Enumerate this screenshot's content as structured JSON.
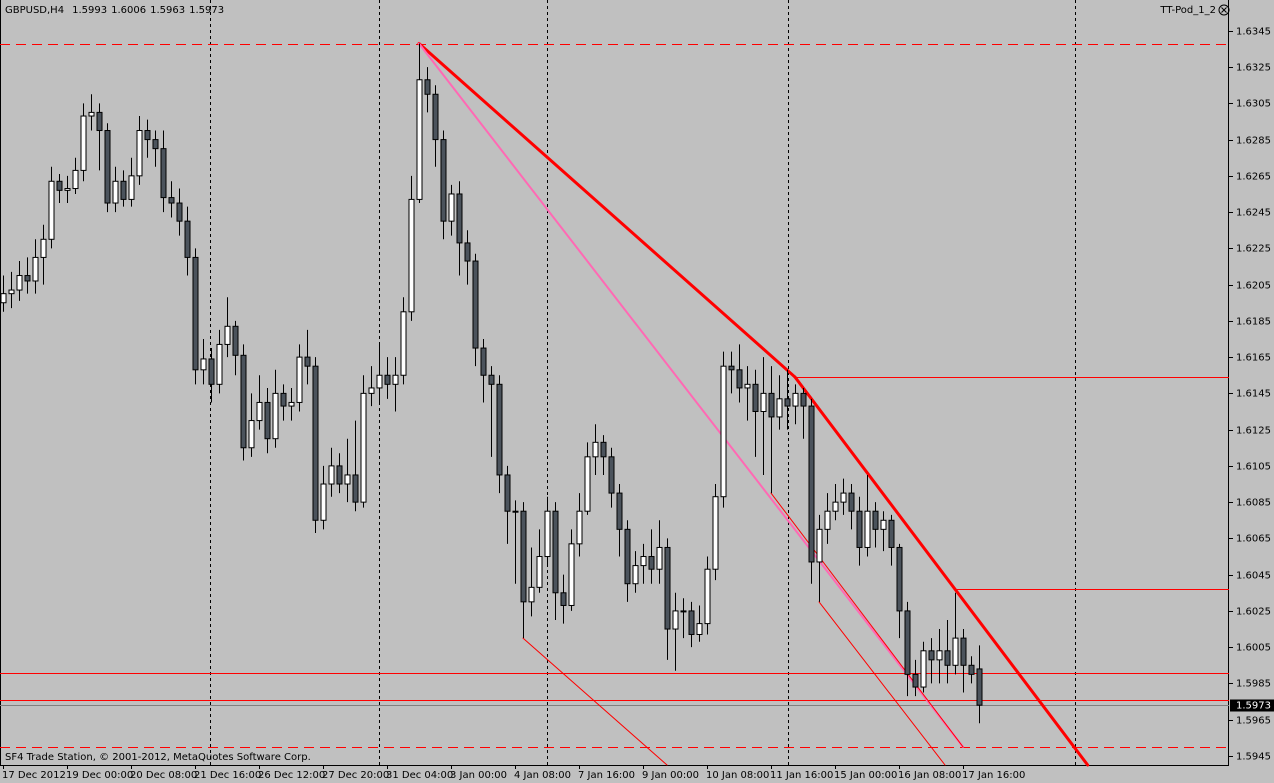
{
  "chart_data": {
    "type": "candlestick",
    "symbol": "GBPUSD,H4",
    "indicator": "TT-Pod_1_2",
    "footer": "SF4 Trade Station, © 2001-2012, MetaQuotes Software Corp.",
    "up_color": "#ffffff",
    "down_color": "#4b535c",
    "line_color": "#ff0000",
    "categories": [
      "17 Dec 2012",
      null,
      null,
      null,
      null,
      null,
      null,
      null,
      "19 Dec 00:00",
      null,
      null,
      null,
      null,
      null,
      null,
      null,
      "20 Dec 08:00",
      null,
      null,
      null,
      null,
      null,
      null,
      null,
      "21 Dec 16:00",
      null,
      null,
      null,
      null,
      null,
      null,
      null,
      "26 Dec 12:00",
      null,
      null,
      null,
      null,
      null,
      null,
      null,
      "27 Dec 20:00",
      null,
      null,
      null,
      null,
      null,
      null,
      null,
      "31 Dec 04:00",
      null,
      null,
      null,
      null,
      null,
      null,
      null,
      "3 Jan 00:00",
      null,
      null,
      null,
      null,
      null,
      null,
      null,
      "4 Jan 08:00",
      null,
      null,
      null,
      null,
      null,
      null,
      null,
      "7 Jan 16:00",
      null,
      null,
      null,
      null,
      null,
      null,
      null,
      "9 Jan 00:00",
      null,
      null,
      null,
      null,
      null,
      null,
      null,
      "10 Jan 08:00",
      null,
      null,
      null,
      null,
      null,
      null,
      null,
      "11 Jan 16:00",
      null,
      null,
      null,
      null,
      null,
      null,
      null,
      "15 Jan 00:00",
      null,
      null,
      null,
      null,
      null,
      null,
      null,
      "16 Jan 08:00",
      null,
      null,
      null,
      null,
      null,
      null,
      null,
      "17 Jan 16:00",
      null,
      null
    ],
    "open": [
      1.6195,
      1.62,
      1.6202,
      1.621,
      1.6207,
      1.622,
      1.623,
      1.6262,
      1.6257,
      1.6258,
      1.6268,
      1.6298,
      1.63,
      1.629,
      1.625,
      1.6262,
      1.6252,
      1.6265,
      1.629,
      1.6285,
      1.628,
      1.6253,
      1.625,
      1.624,
      1.622,
      1.6158,
      1.6164,
      1.615,
      1.6172,
      1.6182,
      1.6166,
      1.6115,
      1.613,
      1.614,
      1.612,
      1.6145,
      1.6138,
      1.614,
      1.6165,
      1.616,
      1.6075,
      1.6095,
      1.6105,
      1.6095,
      1.61,
      1.6085,
      1.6145,
      1.6148,
      1.6155,
      1.615,
      1.6155,
      1.619,
      1.6252,
      1.6318,
      1.631,
      1.6285,
      1.624,
      1.6255,
      1.6228,
      1.6218,
      1.617,
      1.6155,
      1.615,
      1.61,
      1.608,
      1.608,
      1.603,
      1.6038,
      1.6055,
      1.608,
      1.6035,
      1.6028,
      1.6062,
      1.608,
      1.611,
      1.6118,
      1.611,
      1.609,
      1.607,
      1.604,
      1.605,
      1.6055,
      1.6048,
      1.606,
      1.6015,
      1.6025,
      1.6025,
      1.6012,
      1.6018,
      1.6048,
      1.6088,
      1.616,
      1.6158,
      1.6148,
      1.615,
      1.6135,
      1.6145,
      1.6132,
      1.6142,
      1.6138,
      1.6145,
      1.6138,
      1.6052,
      1.607,
      1.608,
      1.6085,
      1.609,
      1.608,
      1.606,
      1.608,
      1.607,
      1.6075,
      1.606,
      1.6025,
      1.599,
      1.5983,
      1.6003,
      1.5998,
      1.6003,
      1.5995,
      1.601,
      1.5995,
      1.5993
    ],
    "high": [
      1.621,
      1.6212,
      1.6218,
      1.622,
      1.623,
      1.6238,
      1.627,
      1.6266,
      1.6265,
      1.6275,
      1.6305,
      1.631,
      1.6305,
      1.6294,
      1.627,
      1.6268,
      1.6275,
      1.6298,
      1.6296,
      1.629,
      1.629,
      1.6262,
      1.6258,
      1.6248,
      1.6225,
      1.6175,
      1.617,
      1.618,
      1.6198,
      1.6185,
      1.6172,
      1.6145,
      1.6155,
      1.6148,
      1.6158,
      1.615,
      1.6148,
      1.6172,
      1.618,
      1.6165,
      1.6105,
      1.6115,
      1.6112,
      1.612,
      1.613,
      1.6155,
      1.616,
      1.6172,
      1.6165,
      1.6165,
      1.6198,
      1.6265,
      1.6338,
      1.6325,
      1.6315,
      1.629,
      1.626,
      1.6262,
      1.6235,
      1.6222,
      1.6175,
      1.616,
      1.6155,
      1.6105,
      1.6086,
      1.6085,
      1.606,
      1.607,
      1.6088,
      1.6085,
      1.6045,
      1.607,
      1.609,
      1.6118,
      1.6128,
      1.6122,
      1.6115,
      1.6095,
      1.6075,
      1.6058,
      1.6062,
      1.607,
      1.6075,
      1.6065,
      1.6035,
      1.6032,
      1.603,
      1.6028,
      1.6055,
      1.6095,
      1.6168,
      1.6168,
      1.6172,
      1.616,
      1.6158,
      1.6165,
      1.616,
      1.6155,
      1.6158,
      1.615,
      1.6148,
      1.6142,
      1.6078,
      1.609,
      1.6095,
      1.6098,
      1.6095,
      1.6088,
      1.61,
      1.6085,
      1.608,
      1.6078,
      1.6062,
      1.603,
      1.5998,
      1.6008,
      1.601,
      1.6015,
      1.602,
      1.6035,
      1.6015,
      1.6,
      1.6006
    ],
    "low": [
      1.619,
      1.6192,
      1.6196,
      1.62,
      1.62,
      1.6205,
      1.6225,
      1.625,
      1.625,
      1.6255,
      1.6262,
      1.629,
      1.6268,
      1.6245,
      1.6245,
      1.6248,
      1.6248,
      1.626,
      1.6275,
      1.627,
      1.6245,
      1.6242,
      1.6232,
      1.621,
      1.615,
      1.615,
      1.614,
      1.6145,
      1.6165,
      1.6155,
      1.6108,
      1.611,
      1.6125,
      1.6112,
      1.6115,
      1.613,
      1.613,
      1.6135,
      1.615,
      1.6068,
      1.607,
      1.6088,
      1.609,
      1.6085,
      1.608,
      1.6082,
      1.6138,
      1.614,
      1.6142,
      1.6135,
      1.615,
      1.6185,
      1.625,
      1.63,
      1.627,
      1.623,
      1.6232,
      1.621,
      1.6205,
      1.616,
      1.614,
      1.611,
      1.609,
      1.6062,
      1.604,
      1.601,
      1.6022,
      1.6035,
      1.605,
      1.602,
      1.6018,
      1.6025,
      1.6055,
      1.6078,
      1.61,
      1.61,
      1.6082,
      1.6055,
      1.603,
      1.6035,
      1.604,
      1.604,
      1.604,
      1.5998,
      1.5992,
      1.601,
      1.6005,
      1.6008,
      1.6012,
      1.6042,
      1.6082,
      1.6145,
      1.614,
      1.613,
      1.611,
      1.61,
      1.609,
      1.6125,
      1.6125,
      1.6128,
      1.612,
      1.604,
      1.603,
      1.6062,
      1.6075,
      1.6078,
      1.607,
      1.605,
      1.6055,
      1.606,
      1.6058,
      1.605,
      1.601,
      1.5978,
      1.5978,
      1.598,
      1.5985,
      1.5985,
      1.5985,
      1.599,
      1.598,
      1.5985,
      1.5963
    ],
    "close": [
      1.62,
      1.6202,
      1.621,
      1.6207,
      1.622,
      1.623,
      1.6262,
      1.6257,
      1.6258,
      1.6268,
      1.6298,
      1.63,
      1.629,
      1.625,
      1.6262,
      1.6252,
      1.6265,
      1.629,
      1.6285,
      1.628,
      1.6253,
      1.625,
      1.624,
      1.622,
      1.6158,
      1.6164,
      1.615,
      1.6172,
      1.6182,
      1.6166,
      1.6115,
      1.613,
      1.614,
      1.612,
      1.6145,
      1.6138,
      1.614,
      1.6165,
      1.616,
      1.6075,
      1.6095,
      1.6105,
      1.6095,
      1.61,
      1.6085,
      1.6145,
      1.6148,
      1.6155,
      1.615,
      1.6155,
      1.619,
      1.6252,
      1.6318,
      1.631,
      1.6285,
      1.624,
      1.6255,
      1.6228,
      1.6218,
      1.617,
      1.6155,
      1.615,
      1.61,
      1.608,
      1.608,
      1.603,
      1.6038,
      1.6055,
      1.608,
      1.6035,
      1.6028,
      1.6062,
      1.608,
      1.611,
      1.6118,
      1.611,
      1.609,
      1.607,
      1.604,
      1.605,
      1.6055,
      1.6048,
      1.606,
      1.6015,
      1.6025,
      1.6025,
      1.6012,
      1.6018,
      1.6048,
      1.6088,
      1.616,
      1.6158,
      1.6148,
      1.615,
      1.6135,
      1.6145,
      1.6132,
      1.6142,
      1.6138,
      1.6145,
      1.6138,
      1.6052,
      1.607,
      1.608,
      1.6085,
      1.609,
      1.608,
      1.606,
      1.608,
      1.607,
      1.6075,
      1.606,
      1.6025,
      1.599,
      1.5983,
      1.6003,
      1.5998,
      1.6003,
      1.5995,
      1.601,
      1.5995,
      1.599,
      1.5973
    ],
    "ylim": [
      1.594,
      1.6362
    ],
    "yticks": [
      1.6345,
      1.6325,
      1.6305,
      1.6285,
      1.6265,
      1.6245,
      1.6225,
      1.6205,
      1.6185,
      1.6165,
      1.6145,
      1.6125,
      1.6105,
      1.6085,
      1.6065,
      1.6045,
      1.6025,
      1.6005,
      1.5985,
      1.5965,
      1.5945
    ],
    "hlines": [
      {
        "value": 1.6338,
        "dashed": true
      },
      {
        "value": 1.6154,
        "from": 99
      },
      {
        "value": 1.6037,
        "from": 119
      },
      {
        "value": 1.5991
      },
      {
        "value": 1.5976
      },
      {
        "value": 1.595,
        "dashed": true
      }
    ],
    "trendlines": [
      {
        "points": [
          [
            52,
            1.6338
          ],
          [
            99,
            1.6154
          ]
        ],
        "width": 3,
        "color": "#ff0000"
      },
      {
        "points": [
          [
            99,
            1.6154
          ],
          [
            119,
            1.6037
          ]
        ],
        "width": 3,
        "color": "#ff0000",
        "extend": true
      },
      {
        "points": [
          [
            52,
            1.6338
          ],
          [
            120,
            1.595
          ]
        ],
        "width": 2,
        "color": "#ff69b4"
      },
      {
        "points": [
          [
            65,
            1.601
          ],
          [
            83,
            1.594
          ]
        ],
        "width": 1,
        "color": "#ff0000"
      },
      {
        "points": [
          [
            96,
            1.609
          ],
          [
            120,
            1.595
          ]
        ],
        "width": 1,
        "color": "#ff0000"
      },
      {
        "points": [
          [
            102,
            1.603
          ],
          [
            117.75,
            1.594
          ]
        ],
        "width": 1,
        "color": "#ff0000"
      }
    ]
  }
}
